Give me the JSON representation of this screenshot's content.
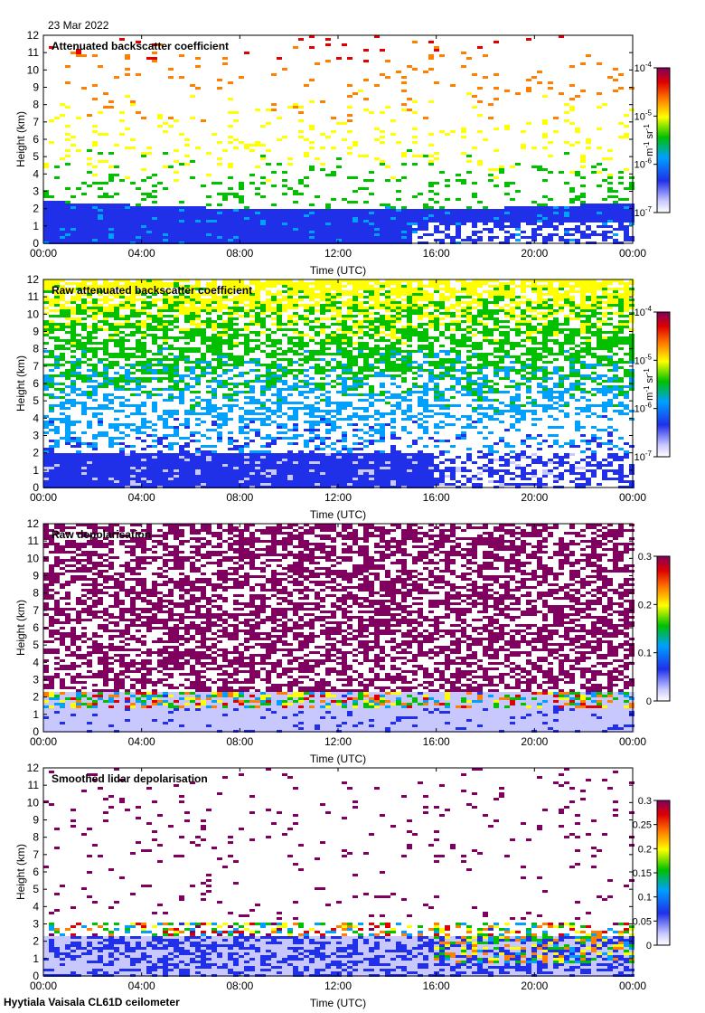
{
  "header": {
    "date": "23 Mar 2022"
  },
  "footer": {
    "site": "Hyytiala Vaisala CL61D ceilometer"
  },
  "colors": {
    "colormap": [
      "#ffffff",
      "#c8c8ff",
      "#2030e8",
      "#00a0ff",
      "#00c000",
      "#ffff00",
      "#ff8000",
      "#e00000",
      "#800060"
    ]
  },
  "chart_data": [
    {
      "type": "heatmap",
      "title": "Attenuated backscatter coefficient",
      "xlabel": "Time (UTC)",
      "ylabel": "Height (km)",
      "xticks": [
        "00:00",
        "04:00",
        "08:00",
        "12:00",
        "16:00",
        "20:00",
        "00:00"
      ],
      "yticks": [
        "0",
        "1",
        "2",
        "3",
        "4",
        "5",
        "6",
        "7",
        "8",
        "9",
        "10",
        "11",
        "12"
      ],
      "ylim": [
        0,
        12
      ],
      "xlim_hours": [
        0,
        24
      ],
      "colorbar": {
        "scale": "log",
        "range": [
          1e-07,
          0.0001
        ],
        "ticks": [
          {
            "base": "10",
            "exp": "-4"
          },
          {
            "base": "10",
            "exp": "-5"
          },
          {
            "base": "10",
            "exp": "-6"
          },
          {
            "base": "10",
            "exp": "-7"
          }
        ],
        "label": {
          "a": "m",
          "ae": "-1",
          "b": " sr",
          "be": "-1"
        }
      },
      "layers": [
        {
          "description": "dense boundary layer",
          "top_km": 2.5,
          "level": 0.25
        },
        {
          "description": "aerosol/cloud speckle",
          "top_km": 12,
          "level_low": 0.4,
          "level_high": 0.8
        }
      ]
    },
    {
      "type": "heatmap",
      "title": "Raw attenuated backscatter coefficient",
      "xlabel": "Time (UTC)",
      "ylabel": "Height (km)",
      "xticks": [
        "00:00",
        "04:00",
        "08:00",
        "12:00",
        "16:00",
        "20:00",
        "00:00"
      ],
      "yticks": [
        "0",
        "1",
        "2",
        "3",
        "4",
        "5",
        "6",
        "7",
        "8",
        "9",
        "10",
        "11",
        "12"
      ],
      "ylim": [
        0,
        12
      ],
      "xlim_hours": [
        0,
        24
      ],
      "colorbar": {
        "scale": "log",
        "range": [
          1e-07,
          0.0001
        ],
        "ticks": [
          {
            "base": "10",
            "exp": "-4"
          },
          {
            "base": "10",
            "exp": "-5"
          },
          {
            "base": "10",
            "exp": "-6"
          },
          {
            "base": "10",
            "exp": "-7"
          }
        ],
        "label": {
          "a": "m",
          "ae": "-1",
          "b": " sr",
          "be": "-1"
        }
      }
    },
    {
      "type": "heatmap",
      "title": "Raw depolarisation",
      "xlabel": "Time (UTC)",
      "ylabel": "Height (km)",
      "xticks": [
        "00:00",
        "04:00",
        "08:00",
        "12:00",
        "16:00",
        "20:00",
        "00:00"
      ],
      "yticks": [
        "0",
        "1",
        "2",
        "3",
        "4",
        "5",
        "6",
        "7",
        "8",
        "9",
        "10",
        "11",
        "12"
      ],
      "ylim": [
        0,
        12
      ],
      "xlim_hours": [
        0,
        24
      ],
      "colorbar": {
        "scale": "linear",
        "range": [
          0,
          0.3
        ],
        "ticks": [
          "0.3",
          "0.2",
          "0.1",
          "0"
        ],
        "label": null
      }
    },
    {
      "type": "heatmap",
      "title": "Smoothed lidar depolarisation",
      "xlabel": "Time (UTC)",
      "ylabel": "Height (km)",
      "xticks": [
        "00:00",
        "04:00",
        "08:00",
        "12:00",
        "16:00",
        "20:00",
        "00:00"
      ],
      "yticks": [
        "0",
        "1",
        "2",
        "3",
        "4",
        "5",
        "6",
        "7",
        "8",
        "9",
        "10",
        "11",
        "12"
      ],
      "ylim": [
        0,
        12
      ],
      "xlim_hours": [
        0,
        24
      ],
      "colorbar": {
        "scale": "linear",
        "range": [
          0,
          0.3
        ],
        "ticks": [
          "0.3",
          "0.25",
          "0.2",
          "0.15",
          "0.1",
          "0.05",
          "0"
        ],
        "label": null
      }
    }
  ]
}
